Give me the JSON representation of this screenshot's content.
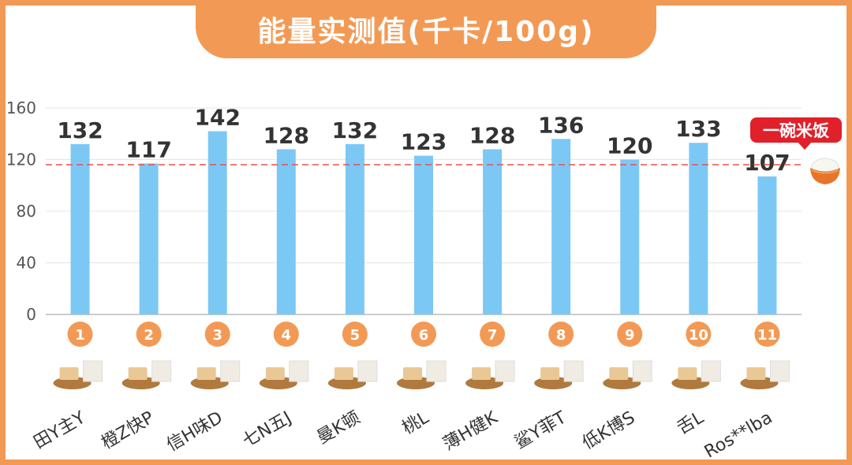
{
  "title": "能量实测值(千卡/100g)",
  "badge": {
    "label": "一碗米饭"
  },
  "colors": {
    "accent": "#f29a55",
    "bar": "#7cc8f5",
    "reference_line": "#e8504a",
    "badge": "#e0202a",
    "value_text": "#333333"
  },
  "chart_data": {
    "type": "bar",
    "title": "能量实测值(千卡/100g)",
    "categories": [
      "田Y主Y",
      "橙Z快P",
      "信H味D",
      "七N五J",
      "曼K顿",
      "桃L",
      "薄H健K",
      "鲨Y菲T",
      "低K博S",
      "舌L",
      "Ros**lba"
    ],
    "ranks": [
      "1",
      "2",
      "3",
      "4",
      "5",
      "6",
      "7",
      "8",
      "9",
      "10",
      "11"
    ],
    "values": [
      132,
      117,
      142,
      128,
      132,
      123,
      128,
      136,
      120,
      133,
      107
    ],
    "yticks": [
      0,
      40,
      80,
      120,
      160
    ],
    "ylim": [
      0,
      160
    ],
    "reference_line": {
      "value": 116,
      "label": "一碗米饭"
    },
    "grid": true
  }
}
